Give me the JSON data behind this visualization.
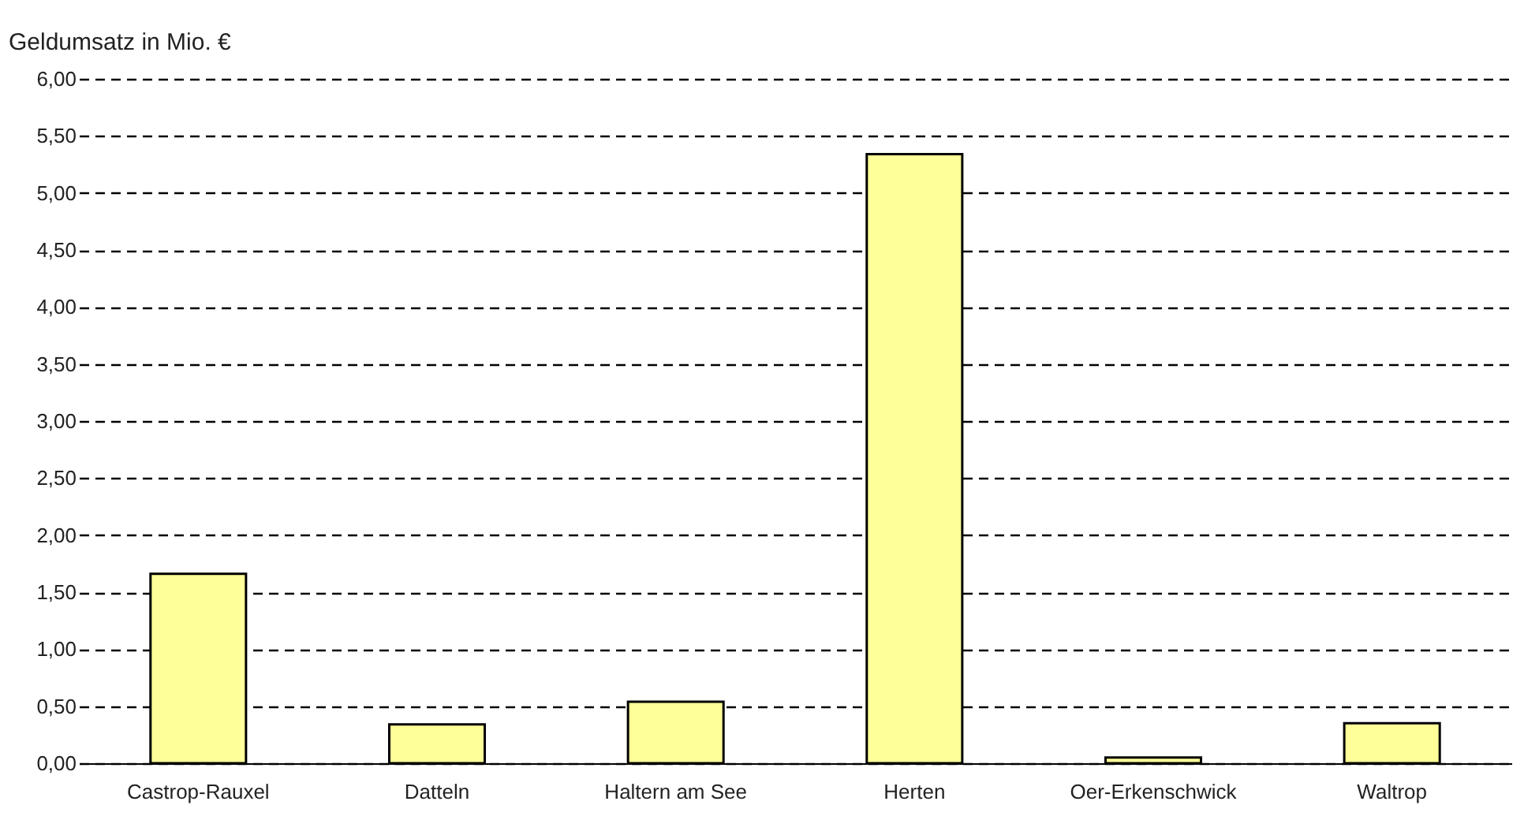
{
  "chart_data": {
    "type": "bar",
    "ylabel": "Geldumsatz in Mio. €",
    "categories": [
      "Castrop-Rauxel",
      "Datteln",
      "Haltern am See",
      "Herten",
      "Oer-Erkenschwick",
      "Waltrop"
    ],
    "values": [
      1.66,
      0.34,
      0.54,
      5.34,
      0.05,
      0.35
    ],
    "color": "#ffff99",
    "ylim": [
      0,
      6
    ],
    "yticks": [
      {
        "value": 0,
        "label": "0,00"
      },
      {
        "value": 0.5,
        "label": "0,50"
      },
      {
        "value": 1,
        "label": "1,00"
      },
      {
        "value": 1.5,
        "label": "1,50"
      },
      {
        "value": 2,
        "label": "2,00"
      },
      {
        "value": 2.5,
        "label": "2,50"
      },
      {
        "value": 3,
        "label": "3,00"
      },
      {
        "value": 3.5,
        "label": "3,50"
      },
      {
        "value": 4,
        "label": "4,00"
      },
      {
        "value": 4.5,
        "label": "4,50"
      },
      {
        "value": 5,
        "label": "5,00"
      },
      {
        "value": 5.5,
        "label": "5,50"
      },
      {
        "value": 6,
        "label": "6,00"
      }
    ],
    "grid": "y"
  }
}
